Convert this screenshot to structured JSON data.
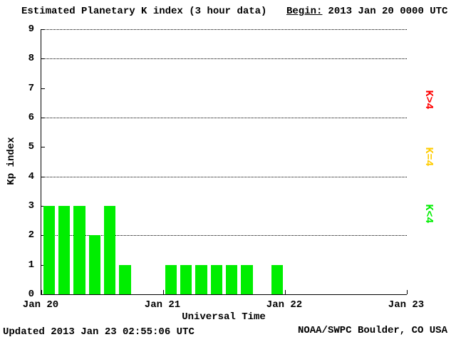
{
  "chart_data": {
    "type": "bar",
    "title": "Estimated Planetary K index (3 hour data)",
    "begin_label": "Begin:",
    "begin_value": "2013 Jan 20 0000 UTC",
    "ylabel": "Kp index",
    "xlabel": "Universal Time",
    "ylim": [
      0,
      9
    ],
    "yticks": [
      0,
      1,
      2,
      3,
      4,
      5,
      6,
      7,
      8,
      9
    ],
    "gridline_values": [
      2,
      4,
      6,
      8,
      9
    ],
    "x_day_labels": [
      "Jan 20",
      "Jan 21",
      "Jan 22",
      "Jan 23"
    ],
    "slots_per_day": 8,
    "total_slots": 24,
    "slot_hours": 3,
    "grid": "dotted",
    "bar_color": "#00ee00",
    "bars": [
      {
        "slot": 0,
        "kp": 3
      },
      {
        "slot": 1,
        "kp": 3
      },
      {
        "slot": 2,
        "kp": 3
      },
      {
        "slot": 3,
        "kp": 2
      },
      {
        "slot": 4,
        "kp": 3
      },
      {
        "slot": 5,
        "kp": 1
      },
      {
        "slot": 8,
        "kp": 1
      },
      {
        "slot": 9,
        "kp": 1
      },
      {
        "slot": 10,
        "kp": 1
      },
      {
        "slot": 11,
        "kp": 1
      },
      {
        "slot": 12,
        "kp": 1
      },
      {
        "slot": 13,
        "kp": 1
      },
      {
        "slot": 15,
        "kp": 1
      }
    ],
    "legend": [
      {
        "label": "K>4",
        "color": "#ff0000"
      },
      {
        "label": "K=4",
        "color": "#ffcc00"
      },
      {
        "label": "K<4",
        "color": "#00ee00"
      }
    ],
    "footer_updated": "Updated 2013 Jan 23 02:55:06 UTC",
    "footer_credit": "NOAA/SWPC Boulder, CO USA"
  }
}
